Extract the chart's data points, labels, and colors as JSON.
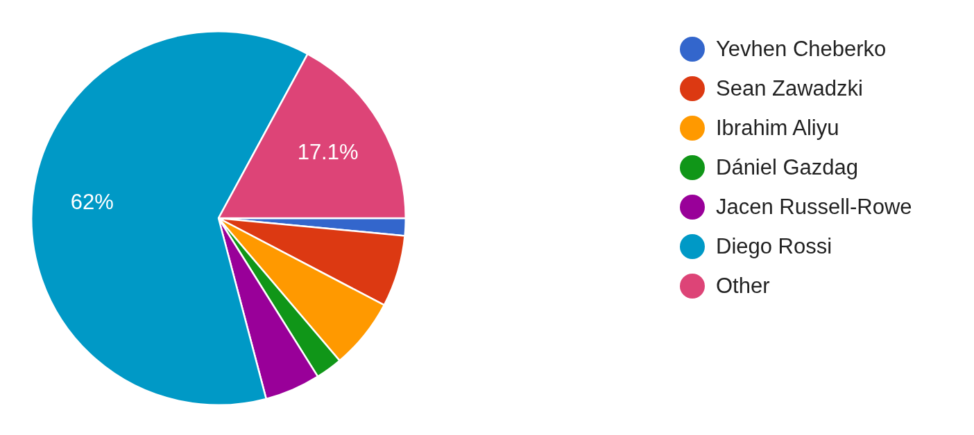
{
  "chart_data": {
    "type": "pie",
    "categories": [
      "Yevhen Cheberko",
      "Sean Zawadzki",
      "Ibrahim Aliyu",
      "Dániel Gazdag",
      "Jacen Russell-Rowe",
      "Diego Rossi",
      "Other"
    ],
    "values": [
      1.5,
      6.2,
      6.1,
      2.3,
      4.8,
      62,
      17.1
    ],
    "colors": [
      "#3366cc",
      "#dc3912",
      "#ff9900",
      "#109618",
      "#990099",
      "#0099c6",
      "#dd4477"
    ],
    "value_labels": [
      null,
      null,
      null,
      null,
      null,
      "62%",
      "17.1%"
    ],
    "legend": "right"
  }
}
